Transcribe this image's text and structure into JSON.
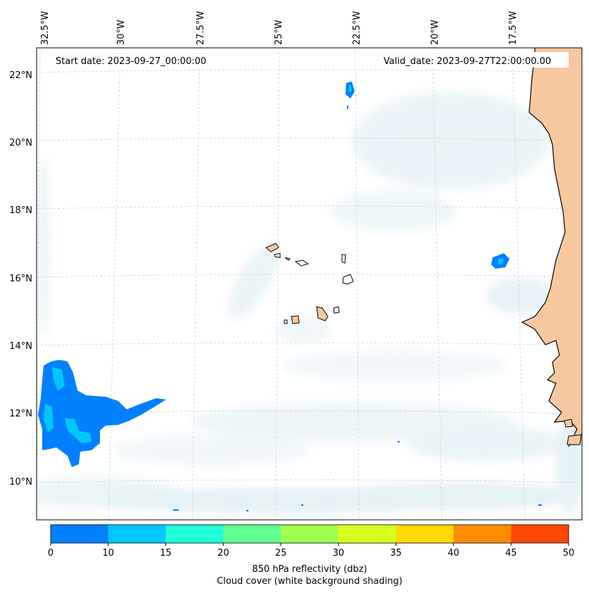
{
  "header": {
    "start_date": "Start date: 2023-09-27_00:00:00",
    "valid_date": "Valid_date: 2023-09-27T22:00:00.00"
  },
  "axes": {
    "lon_labels": [
      "32.5°W",
      "30°W",
      "27.5°W",
      "25°W",
      "22.5°W",
      "20°W",
      "17.5°W"
    ],
    "lat_labels": [
      "22°N",
      "20°N",
      "18°N",
      "16°N",
      "14°N",
      "12°N",
      "10°N"
    ]
  },
  "colorbar": {
    "ticks": [
      "0",
      "10",
      "15",
      "20",
      "25",
      "30",
      "35",
      "40",
      "45",
      "50"
    ],
    "colors": [
      "#0080ff",
      "#00c8ff",
      "#20ffd8",
      "#60ff90",
      "#a0ff50",
      "#d8ff20",
      "#ffd800",
      "#ff8c00",
      "#ff4800"
    ],
    "label_line1": "850 hPa reflectivity (dbz)",
    "label_line2": "Cloud cover (white background shading)"
  },
  "colors": {
    "reflectivity_low": "#0080ff",
    "reflectivity_mid": "#00c8ff",
    "land": "#f7c8a0",
    "cloud": "#cfe6ee",
    "coast": "#000000"
  }
}
